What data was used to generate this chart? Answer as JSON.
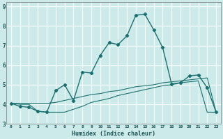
{
  "xlabel": "Humidex (Indice chaleur)",
  "background_color": "#cceaea",
  "grid_color": "#ffffff",
  "line_color": "#1a7070",
  "xlim": [
    -0.5,
    23.5
  ],
  "ylim": [
    3.0,
    9.2
  ],
  "yticks": [
    3,
    4,
    5,
    6,
    7,
    8,
    9
  ],
  "xticks": [
    0,
    1,
    2,
    3,
    4,
    5,
    6,
    7,
    8,
    9,
    10,
    11,
    12,
    13,
    14,
    15,
    16,
    17,
    18,
    19,
    20,
    21,
    22,
    23
  ],
  "series1_x": [
    0,
    1,
    2,
    3,
    4,
    5,
    6,
    7,
    8,
    9,
    10,
    11,
    12,
    13,
    14,
    15,
    16,
    17,
    18,
    19,
    20,
    21,
    22,
    23
  ],
  "series1_y": [
    4.05,
    3.9,
    3.85,
    3.65,
    3.6,
    4.7,
    5.0,
    4.2,
    5.65,
    5.6,
    6.5,
    7.15,
    7.05,
    7.5,
    8.55,
    8.6,
    7.8,
    6.9,
    5.05,
    5.1,
    5.45,
    5.5,
    4.85,
    3.6
  ],
  "series2_x": [
    0,
    1,
    2,
    3,
    4,
    5,
    6,
    7,
    8,
    9,
    10,
    11,
    12,
    13,
    14,
    15,
    16,
    17,
    18,
    19,
    20,
    21,
    22,
    23
  ],
  "series2_y": [
    4.05,
    4.0,
    4.0,
    3.65,
    3.6,
    3.6,
    3.6,
    3.75,
    3.9,
    4.1,
    4.2,
    4.3,
    4.45,
    4.55,
    4.65,
    4.75,
    4.85,
    4.95,
    5.0,
    5.1,
    5.15,
    5.2,
    3.6,
    3.6
  ],
  "series3_x": [
    0,
    1,
    2,
    3,
    4,
    5,
    6,
    7,
    8,
    9,
    10,
    11,
    12,
    13,
    14,
    15,
    16,
    17,
    18,
    19,
    20,
    21,
    22,
    23
  ],
  "series3_y": [
    4.05,
    4.05,
    4.05,
    4.05,
    4.05,
    4.1,
    4.2,
    4.3,
    4.4,
    4.5,
    4.55,
    4.65,
    4.7,
    4.8,
    4.9,
    4.95,
    5.0,
    5.1,
    5.15,
    5.2,
    5.25,
    5.3,
    5.35,
    3.6
  ]
}
